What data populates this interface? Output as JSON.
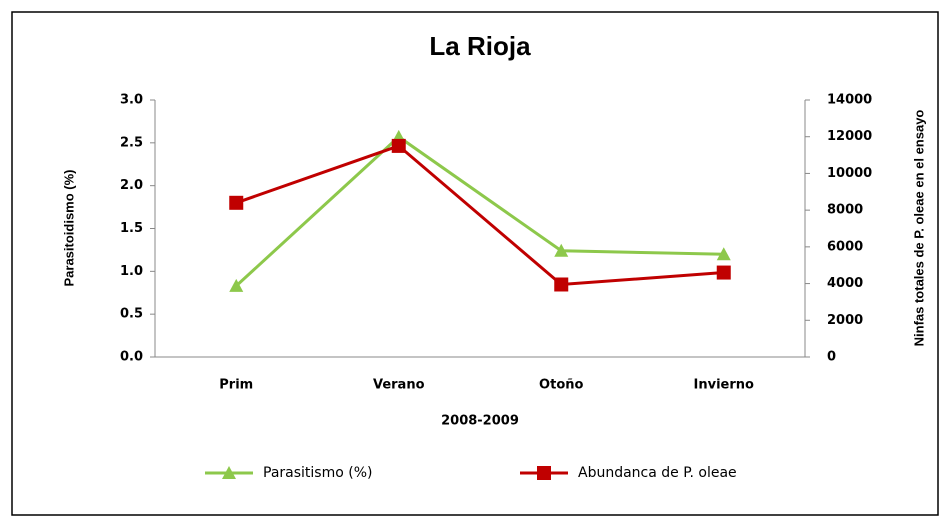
{
  "chart_data": {
    "type": "line",
    "title": "La Rioja",
    "categories": [
      "Prim",
      "Verano",
      "Otoño",
      "Invierno"
    ],
    "series": [
      {
        "name": "Parasitismo (%)",
        "color": "#8dc84b",
        "marker": "triangle",
        "values": [
          0.83,
          2.57,
          1.24,
          1.2
        ]
      },
      {
        "name": "Abundanca de P. oleae",
        "color": "#c00000",
        "marker": "square",
        "axis": "y2",
        "values": [
          8400,
          11500,
          3950,
          4600
        ]
      }
    ],
    "xlabel": "2008-2009",
    "ylabel": "Parasitoidismo (%)",
    "y2label": "Ninfas totales de P. oleae en el ensayo",
    "ylim": [
      0,
      3
    ],
    "yticks": [
      {
        "value": 0,
        "label": "0.0"
      },
      0.5,
      {
        "value": 1,
        "label": "1.0"
      },
      1.5,
      {
        "value": 2,
        "label": "2.0"
      },
      2.5,
      {
        "value": 3,
        "label": "3.0"
      }
    ],
    "y2lim": [
      0,
      14000
    ],
    "y2ticks": [
      0,
      2000,
      4000,
      6000,
      8000,
      10000,
      12000,
      14000
    ],
    "grid": false,
    "legend": "bottom"
  }
}
